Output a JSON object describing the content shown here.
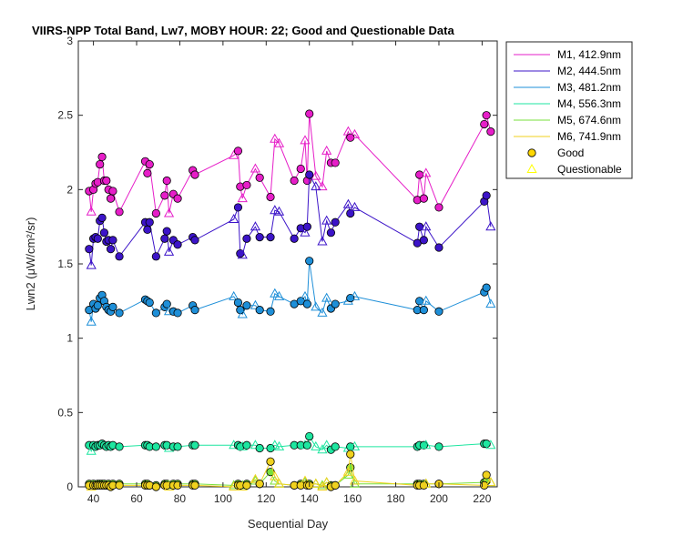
{
  "chart_data": {
    "type": "scatter",
    "title": "VIIRS-NPP Total Band, Lw7, MOBY HOUR: 22;  Good and Questionable Data",
    "xlabel": "Sequential Day",
    "ylabel": "Lwn2 (μW/cm²/sr)",
    "xlim": [
      33,
      227
    ],
    "ylim": [
      0,
      3
    ],
    "xticks": [
      "40",
      "60",
      "80",
      "100",
      "120",
      "140",
      "160",
      "180",
      "200",
      "220"
    ],
    "xtick_values": [
      40,
      60,
      80,
      100,
      120,
      140,
      160,
      180,
      200,
      220
    ],
    "yticks": [
      "0",
      "0.5",
      "1",
      "1.5",
      "2",
      "2.5",
      "3"
    ],
    "ytick_values": [
      0,
      0.5,
      1,
      1.5,
      2,
      2.5,
      3
    ],
    "grid": false,
    "legend_position": "outside-top-right",
    "legend": [
      {
        "label": "M1, 412.9nm",
        "kind": "line",
        "color": "#e61ec8"
      },
      {
        "label": "M2, 444.5nm",
        "kind": "line",
        "color": "#3c14c8"
      },
      {
        "label": "M3, 481.2nm",
        "kind": "line",
        "color": "#1e8fd8"
      },
      {
        "label": "M4, 556.3nm",
        "kind": "line",
        "color": "#1ee6a0"
      },
      {
        "label": "M5, 674.6nm",
        "kind": "line",
        "color": "#78e03c"
      },
      {
        "label": "M6, 741.9nm",
        "kind": "line",
        "color": "#f0d21e"
      },
      {
        "label": "Good",
        "kind": "circle",
        "color": "#ffd700"
      },
      {
        "label": "Questionable",
        "kind": "triangle",
        "color": "#ffff00"
      }
    ],
    "x": [
      38,
      39,
      40,
      41,
      42,
      43,
      44,
      45,
      46,
      47,
      48,
      49,
      52,
      64,
      65,
      66,
      69,
      73,
      74,
      75,
      77,
      79,
      86,
      87,
      105,
      107,
      108,
      109,
      111,
      115,
      117,
      122,
      124,
      126,
      133,
      136,
      138,
      139,
      140,
      143,
      146,
      148,
      150,
      152,
      158,
      159,
      161,
      190,
      191,
      193,
      194,
      200,
      221,
      222,
      224
    ],
    "series": [
      {
        "name": "M1, 412.9nm",
        "color": "#e61ec8",
        "values": [
          1.99,
          1.85,
          2.0,
          2.04,
          2.05,
          2.17,
          2.22,
          2.06,
          2.06,
          2.0,
          1.94,
          1.99,
          1.85,
          2.19,
          2.11,
          2.17,
          1.84,
          1.96,
          2.06,
          1.84,
          1.97,
          1.94,
          2.13,
          2.1,
          2.23,
          2.26,
          2.02,
          1.94,
          2.03,
          2.14,
          2.08,
          1.95,
          2.34,
          2.31,
          2.06,
          2.14,
          2.33,
          2.06,
          2.51,
          2.09,
          2.02,
          2.26,
          2.18,
          2.18,
          2.39,
          2.35,
          2.37,
          1.93,
          2.1,
          1.94,
          2.11,
          1.88,
          2.44,
          2.5,
          2.39
        ],
        "quality": [
          "G",
          "Q",
          "G",
          "G",
          "G",
          "G",
          "G",
          "G",
          "G",
          "G",
          "G",
          "G",
          "G",
          "G",
          "G",
          "G",
          "G",
          "G",
          "G",
          "Q",
          "G",
          "G",
          "G",
          "G",
          "Q",
          "G",
          "G",
          "Q",
          "G",
          "Q",
          "G",
          "G",
          "Q",
          "Q",
          "G",
          "G",
          "Q",
          "G",
          "G",
          "Q",
          "Q",
          "Q",
          "G",
          "G",
          "Q",
          "G",
          "Q",
          "G",
          "G",
          "G",
          "Q",
          "G",
          "G",
          "G",
          "G"
        ]
      },
      {
        "name": "M2, 444.5nm",
        "color": "#3c14c8",
        "values": [
          1.6,
          1.49,
          1.67,
          1.68,
          1.67,
          1.79,
          1.81,
          1.71,
          1.65,
          1.66,
          1.6,
          1.66,
          1.55,
          1.78,
          1.73,
          1.78,
          1.55,
          1.67,
          1.72,
          1.58,
          1.66,
          1.63,
          1.68,
          1.66,
          1.8,
          1.88,
          1.57,
          1.56,
          1.67,
          1.75,
          1.68,
          1.68,
          1.86,
          1.85,
          1.67,
          1.74,
          1.71,
          1.75,
          2.1,
          2.02,
          1.65,
          1.79,
          1.71,
          1.78,
          1.9,
          1.84,
          1.88,
          1.64,
          1.75,
          1.66,
          1.75,
          1.61,
          1.92,
          1.96,
          1.75
        ],
        "quality": [
          "G",
          "Q",
          "G",
          "G",
          "G",
          "G",
          "G",
          "G",
          "G",
          "G",
          "G",
          "G",
          "G",
          "G",
          "G",
          "G",
          "G",
          "G",
          "G",
          "Q",
          "G",
          "G",
          "G",
          "G",
          "Q",
          "G",
          "G",
          "Q",
          "G",
          "Q",
          "G",
          "G",
          "Q",
          "Q",
          "G",
          "G",
          "Q",
          "G",
          "G",
          "Q",
          "Q",
          "Q",
          "G",
          "G",
          "Q",
          "G",
          "Q",
          "G",
          "G",
          "G",
          "Q",
          "G",
          "G",
          "G",
          "Q"
        ]
      },
      {
        "name": "M3, 481.2nm",
        "color": "#1e8fd8",
        "values": [
          1.19,
          1.11,
          1.23,
          1.2,
          1.22,
          1.27,
          1.29,
          1.25,
          1.21,
          1.19,
          1.18,
          1.21,
          1.17,
          1.26,
          1.25,
          1.24,
          1.17,
          1.21,
          1.23,
          1.18,
          1.18,
          1.17,
          1.22,
          1.19,
          1.28,
          1.24,
          1.19,
          1.16,
          1.22,
          1.22,
          1.19,
          1.18,
          1.3,
          1.28,
          1.23,
          1.25,
          1.28,
          1.23,
          1.52,
          1.21,
          1.17,
          1.27,
          1.2,
          1.23,
          1.25,
          1.27,
          1.28,
          1.19,
          1.25,
          1.19,
          1.25,
          1.18,
          1.31,
          1.34,
          1.23
        ],
        "quality": [
          "G",
          "Q",
          "G",
          "G",
          "G",
          "G",
          "G",
          "G",
          "G",
          "G",
          "G",
          "G",
          "G",
          "G",
          "G",
          "G",
          "G",
          "G",
          "G",
          "Q",
          "G",
          "G",
          "G",
          "G",
          "Q",
          "G",
          "G",
          "Q",
          "G",
          "Q",
          "G",
          "G",
          "Q",
          "Q",
          "G",
          "G",
          "Q",
          "G",
          "G",
          "Q",
          "Q",
          "Q",
          "G",
          "G",
          "Q",
          "G",
          "Q",
          "G",
          "G",
          "G",
          "Q",
          "G",
          "G",
          "G",
          "Q"
        ]
      },
      {
        "name": "M4, 556.3nm",
        "color": "#1ee6a0",
        "values": [
          0.28,
          0.24,
          0.28,
          0.27,
          0.28,
          0.28,
          0.29,
          0.28,
          0.27,
          0.28,
          0.27,
          0.28,
          0.27,
          0.28,
          0.28,
          0.27,
          0.27,
          0.28,
          0.28,
          0.26,
          0.27,
          0.27,
          0.28,
          0.28,
          0.28,
          0.28,
          0.27,
          0.27,
          0.28,
          0.28,
          0.26,
          0.26,
          0.28,
          0.27,
          0.28,
          0.28,
          0.28,
          0.28,
          0.34,
          0.27,
          0.25,
          0.28,
          0.25,
          0.27,
          0.26,
          0.27,
          0.27,
          0.27,
          0.28,
          0.28,
          0.28,
          0.27,
          0.29,
          0.29,
          0.28
        ],
        "quality": [
          "G",
          "Q",
          "G",
          "G",
          "G",
          "G",
          "G",
          "G",
          "G",
          "G",
          "G",
          "G",
          "G",
          "G",
          "G",
          "G",
          "G",
          "G",
          "G",
          "Q",
          "G",
          "G",
          "G",
          "G",
          "Q",
          "G",
          "G",
          "Q",
          "G",
          "Q",
          "G",
          "G",
          "Q",
          "Q",
          "G",
          "G",
          "Q",
          "G",
          "G",
          "Q",
          "Q",
          "Q",
          "G",
          "G",
          "Q",
          "G",
          "Q",
          "G",
          "G",
          "G",
          "Q",
          "G",
          "G",
          "G",
          "Q"
        ]
      },
      {
        "name": "M5, 674.6nm",
        "color": "#78e03c",
        "values": [
          0.02,
          0.01,
          0.02,
          0.01,
          0.02,
          0.02,
          0.02,
          0.02,
          0.01,
          0.02,
          0.01,
          0.02,
          0.02,
          0.02,
          0.02,
          0.01,
          0.01,
          0.02,
          0.02,
          0.01,
          0.02,
          0.02,
          0.02,
          0.02,
          0.01,
          0.02,
          0.01,
          0.01,
          0.02,
          0.04,
          0.02,
          0.1,
          0.04,
          0.02,
          0.01,
          0.02,
          0.03,
          0.02,
          0.02,
          0.02,
          0.01,
          0.03,
          0.01,
          0.01,
          0.08,
          0.13,
          0.02,
          0.02,
          0.02,
          0.02,
          0.02,
          0.02,
          0.03,
          0.04,
          0.03
        ],
        "quality": [
          "G",
          "Q",
          "G",
          "G",
          "G",
          "G",
          "G",
          "G",
          "G",
          "G",
          "G",
          "G",
          "G",
          "G",
          "G",
          "G",
          "G",
          "G",
          "G",
          "Q",
          "G",
          "G",
          "G",
          "G",
          "Q",
          "G",
          "G",
          "Q",
          "G",
          "Q",
          "G",
          "G",
          "Q",
          "Q",
          "G",
          "G",
          "Q",
          "G",
          "G",
          "Q",
          "Q",
          "Q",
          "G",
          "G",
          "Q",
          "G",
          "Q",
          "G",
          "G",
          "G",
          "Q",
          "G",
          "G",
          "G",
          "Q"
        ]
      },
      {
        "name": "M6, 741.9nm",
        "color": "#f0d21e",
        "values": [
          0.01,
          0.0,
          0.01,
          0.01,
          0.01,
          0.01,
          0.01,
          0.01,
          0.01,
          0.01,
          0.0,
          0.01,
          0.01,
          0.01,
          0.01,
          0.01,
          0.0,
          0.01,
          0.01,
          0.0,
          0.01,
          0.01,
          0.01,
          0.01,
          0.0,
          0.01,
          0.01,
          0.0,
          0.01,
          0.05,
          0.02,
          0.17,
          0.07,
          0.02,
          0.01,
          0.01,
          0.04,
          0.01,
          0.01,
          0.02,
          0.0,
          0.03,
          0.0,
          0.01,
          0.1,
          0.22,
          0.04,
          0.01,
          0.01,
          0.01,
          0.02,
          0.02,
          0.01,
          0.08,
          0.03
        ],
        "quality": [
          "G",
          "Q",
          "G",
          "G",
          "G",
          "G",
          "G",
          "G",
          "G",
          "G",
          "G",
          "G",
          "G",
          "G",
          "G",
          "G",
          "G",
          "G",
          "G",
          "Q",
          "G",
          "G",
          "G",
          "G",
          "Q",
          "G",
          "G",
          "Q",
          "G",
          "Q",
          "G",
          "G",
          "Q",
          "Q",
          "G",
          "G",
          "Q",
          "G",
          "G",
          "Q",
          "Q",
          "Q",
          "G",
          "G",
          "Q",
          "G",
          "Q",
          "G",
          "G",
          "G",
          "Q",
          "G",
          "G",
          "G",
          "Q"
        ]
      }
    ]
  }
}
